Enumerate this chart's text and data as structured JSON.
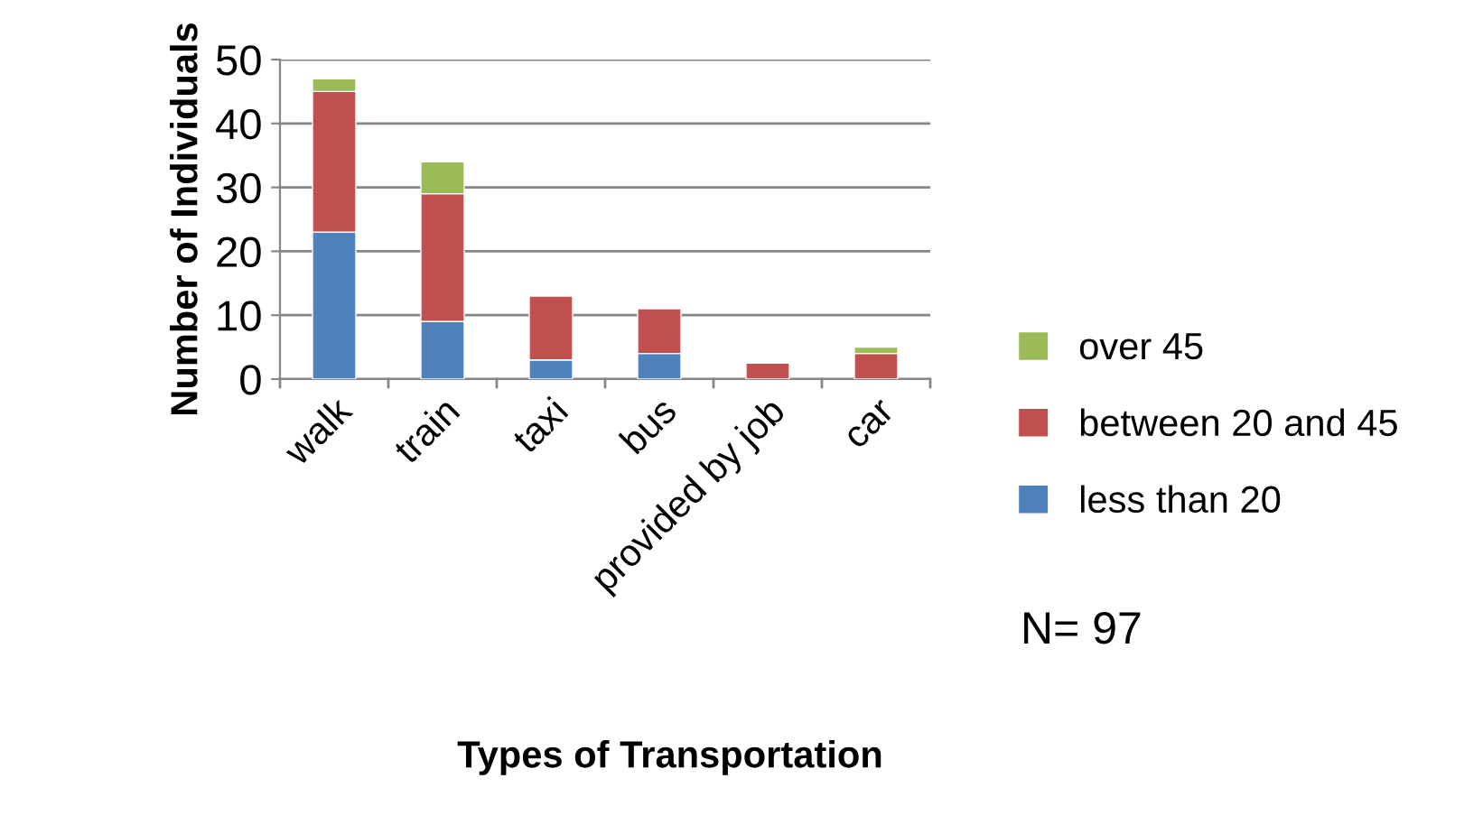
{
  "chart_data": {
    "type": "bar",
    "stacked": true,
    "xlabel": "Types of Transportation",
    "ylabel": "Number of Individuals",
    "categories": [
      "walk",
      "train",
      "taxi",
      "bus",
      "provided by job",
      "car"
    ],
    "series": [
      {
        "name": "less than 20",
        "color": "#4f81bd",
        "values": [
          23,
          9,
          3,
          4,
          0,
          0
        ]
      },
      {
        "name": "between 20 and 45",
        "color": "#c0504d",
        "values": [
          22,
          20,
          10,
          7,
          2.5,
          4
        ]
      },
      {
        "name": "over 45",
        "color": "#9bbb59",
        "values": [
          2,
          5,
          0,
          0,
          0,
          1
        ]
      }
    ],
    "ylim": [
      0,
      50
    ],
    "yticks": [
      0,
      10,
      20,
      30,
      40,
      50
    ],
    "grid": "y",
    "legend": "right",
    "annotations": [
      "N= 97"
    ]
  }
}
